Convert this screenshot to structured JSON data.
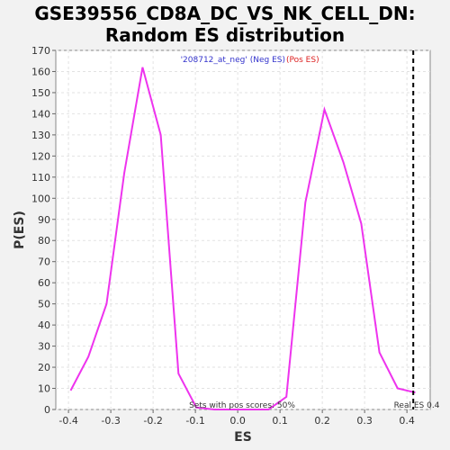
{
  "chart_data": {
    "type": "line",
    "title": [
      "GSE39556_CD8A_DC_VS_NK_CELL_DN:",
      "Random ES distribution"
    ],
    "xlabel": "ES",
    "ylabel": "P(ES)",
    "xlim": [
      -0.43,
      0.455
    ],
    "ylim": [
      0,
      170
    ],
    "xticks": [
      -0.4,
      -0.3,
      -0.2,
      -0.1,
      0.0,
      0.1,
      0.2,
      0.3,
      0.4
    ],
    "xtick_labels": [
      "-0.4",
      "-0.3",
      "-0.2",
      "-0.1",
      "0.0",
      "0.1",
      "0.2",
      "0.3",
      "0.4"
    ],
    "yticks": [
      0,
      10,
      20,
      30,
      40,
      50,
      60,
      70,
      80,
      90,
      100,
      110,
      120,
      130,
      140,
      150,
      160,
      170
    ],
    "grid": true,
    "series": [
      {
        "color": "#ee33ee",
        "x": [
          -0.395,
          -0.353,
          -0.31,
          -0.268,
          -0.225,
          -0.182,
          -0.14,
          -0.098,
          -0.055,
          -0.013,
          0.03,
          0.073,
          0.115,
          0.16,
          0.205,
          0.25,
          0.292,
          0.335,
          0.378,
          0.42
        ],
        "y": [
          9,
          25,
          50,
          112,
          162,
          130,
          17,
          1,
          0,
          0,
          0,
          0,
          6,
          98,
          142,
          117,
          88,
          27,
          10,
          8
        ]
      }
    ],
    "legend": [
      {
        "text": "'208712_at_neg' (Neg ES)",
        "color": "#3333cc"
      },
      {
        "text": "(Pos ES)",
        "color": "#dd2222"
      }
    ],
    "legend_position": "top-center",
    "real_es": {
      "value": 0.415,
      "label": "Real ES 0.4"
    },
    "annotation": "Sets with pos scores: 50%"
  }
}
